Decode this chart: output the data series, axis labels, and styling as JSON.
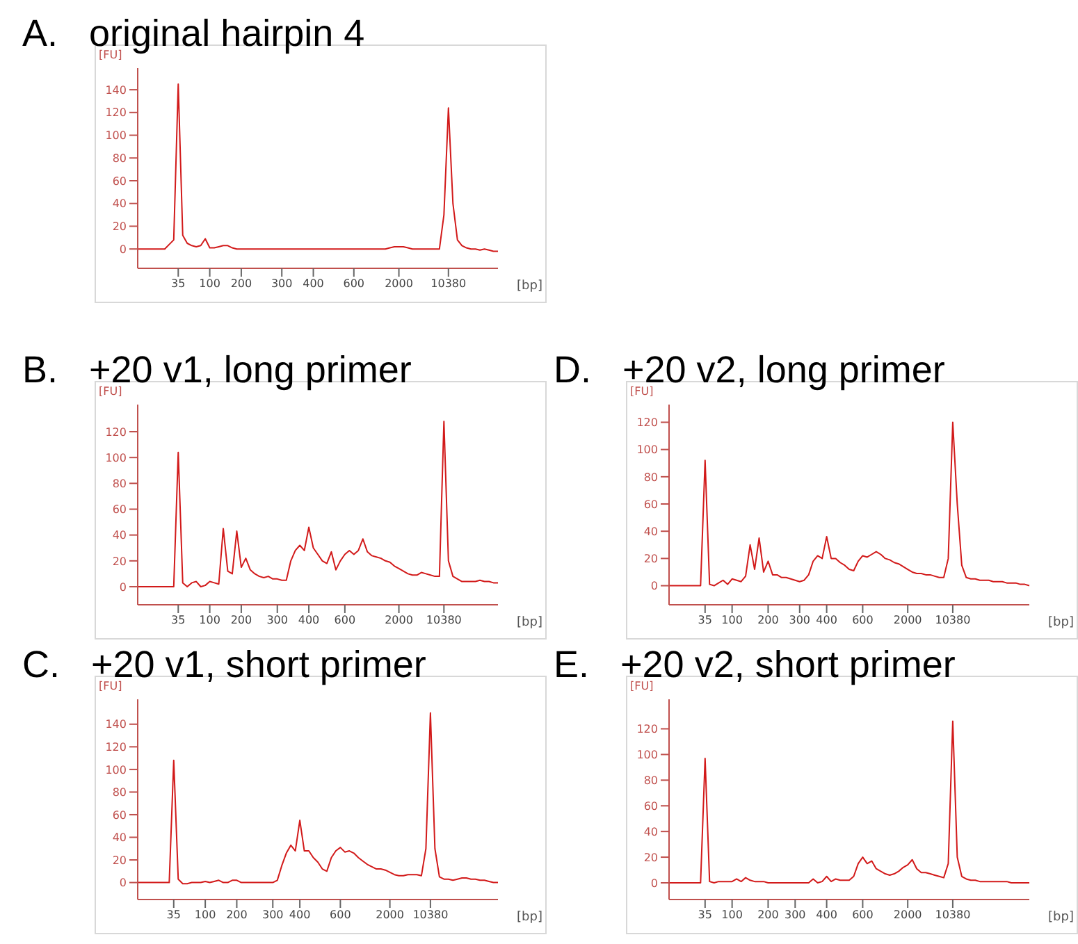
{
  "chart_data": [
    {
      "type": "line",
      "title": "A.   original hairpin 4",
      "ylabel": "[FU]",
      "xlabel": "[bp]",
      "categories": [
        null,
        null,
        null,
        null,
        null,
        null,
        null,
        null,
        null,
        "35",
        null,
        null,
        null,
        null,
        null,
        null,
        "100",
        null,
        null,
        null,
        null,
        null,
        null,
        "200",
        null,
        null,
        null,
        null,
        null,
        null,
        null,
        null,
        "300",
        null,
        null,
        null,
        null,
        null,
        null,
        "400",
        null,
        null,
        null,
        null,
        null,
        null,
        null,
        null,
        "600",
        null,
        null,
        null,
        null,
        null,
        null,
        null,
        null,
        null,
        "2000",
        null,
        null,
        null,
        null,
        null,
        null,
        null,
        null,
        null,
        null,
        "10380",
        null,
        null,
        null,
        null,
        null,
        null,
        null,
        null,
        null,
        null,
        null
      ],
      "series": [
        {
          "color": "#d21a1a",
          "values": [
            0,
            0,
            0,
            0,
            0,
            0,
            0,
            4,
            8,
            145,
            12,
            5,
            3,
            2,
            3,
            9,
            1,
            1,
            2,
            3,
            3,
            1,
            0,
            0,
            0,
            0,
            0,
            0,
            0,
            0,
            0,
            0,
            0,
            0,
            0,
            0,
            0,
            0,
            0,
            0,
            0,
            0,
            0,
            0,
            0,
            0,
            0,
            0,
            0,
            0,
            0,
            0,
            0,
            0,
            0,
            0,
            1,
            2,
            2,
            2,
            1,
            0,
            0,
            0,
            0,
            0,
            0,
            0,
            30,
            124,
            40,
            8,
            3,
            1,
            0,
            0,
            -1,
            0,
            -1,
            -2,
            -2
          ]
        }
      ],
      "ylim": [
        -17,
        159
      ],
      "yticks": [
        0,
        20,
        40,
        60,
        80,
        100,
        120,
        140
      ]
    },
    {
      "type": "line",
      "title": "B.   +20 v1, long primer",
      "ylabel": "[FU]",
      "xlabel": "[bp]",
      "categories": [
        null,
        null,
        null,
        null,
        null,
        null,
        null,
        null,
        null,
        "35",
        null,
        null,
        null,
        null,
        null,
        null,
        "100",
        null,
        null,
        null,
        null,
        null,
        null,
        "200",
        null,
        null,
        null,
        null,
        null,
        null,
        null,
        "300",
        null,
        null,
        null,
        null,
        null,
        null,
        "400",
        null,
        null,
        null,
        null,
        null,
        null,
        null,
        "600",
        null,
        null,
        null,
        null,
        null,
        null,
        null,
        null,
        null,
        null,
        null,
        "2000",
        null,
        null,
        null,
        null,
        null,
        null,
        null,
        null,
        null,
        "10380",
        null,
        null,
        null,
        null,
        null,
        null,
        null,
        null,
        null,
        null,
        null,
        null
      ],
      "series": [
        {
          "color": "#d21a1a",
          "values": [
            0,
            0,
            0,
            0,
            0,
            0,
            0,
            0,
            0,
            104,
            3,
            0,
            3,
            4,
            0,
            1,
            4,
            3,
            2,
            45,
            12,
            10,
            43,
            15,
            22,
            13,
            10,
            8,
            7,
            8,
            6,
            6,
            5,
            5,
            20,
            28,
            32,
            28,
            46,
            30,
            25,
            20,
            18,
            27,
            13,
            20,
            25,
            28,
            25,
            28,
            37,
            27,
            24,
            23,
            22,
            20,
            19,
            16,
            14,
            12,
            10,
            9,
            9,
            11,
            10,
            9,
            8,
            8,
            128,
            20,
            8,
            6,
            4,
            4,
            4,
            4,
            5,
            4,
            4,
            3,
            3
          ]
        }
      ],
      "ylim": [
        -14,
        141
      ],
      "yticks": [
        0,
        20,
        40,
        60,
        80,
        100,
        120
      ]
    },
    {
      "type": "line",
      "title": "C.   +20 v1, short primer",
      "ylabel": "[FU]",
      "xlabel": "[bp]",
      "categories": [
        null,
        null,
        null,
        null,
        null,
        null,
        null,
        null,
        "35",
        null,
        null,
        null,
        null,
        null,
        null,
        "100",
        null,
        null,
        null,
        null,
        null,
        null,
        "200",
        null,
        null,
        null,
        null,
        null,
        null,
        null,
        "300",
        null,
        null,
        null,
        null,
        null,
        "400",
        null,
        null,
        null,
        null,
        null,
        null,
        null,
        null,
        "600",
        null,
        null,
        null,
        null,
        null,
        null,
        null,
        null,
        null,
        null,
        "2000",
        null,
        null,
        null,
        null,
        null,
        null,
        null,
        null,
        "10380",
        null,
        null,
        null,
        null,
        null,
        null,
        null,
        null,
        null,
        null,
        null,
        null,
        null,
        null,
        null
      ],
      "series": [
        {
          "color": "#d21a1a",
          "values": [
            0,
            0,
            0,
            0,
            0,
            0,
            0,
            0,
            108,
            3,
            -1,
            -1,
            0,
            0,
            0,
            1,
            0,
            1,
            2,
            0,
            0,
            2,
            2,
            0,
            0,
            0,
            0,
            0,
            0,
            0,
            0,
            2,
            15,
            26,
            33,
            28,
            55,
            28,
            28,
            22,
            18,
            12,
            10,
            22,
            28,
            31,
            27,
            28,
            26,
            22,
            19,
            16,
            14,
            12,
            12,
            11,
            9,
            7,
            6,
            6,
            7,
            7,
            7,
            6,
            30,
            150,
            30,
            5,
            3,
            3,
            2,
            3,
            4,
            4,
            3,
            3,
            2,
            2,
            1,
            0,
            0
          ]
        }
      ],
      "ylim": [
        -15,
        162
      ],
      "yticks": [
        0,
        20,
        40,
        60,
        80,
        100,
        120,
        140
      ]
    },
    {
      "type": "line",
      "title": "D.   +20 v2, long primer",
      "ylabel": "[FU]",
      "xlabel": "[bp]",
      "categories": [
        null,
        null,
        null,
        null,
        null,
        null,
        null,
        null,
        "35",
        null,
        null,
        null,
        null,
        null,
        "100",
        null,
        null,
        null,
        null,
        null,
        null,
        null,
        "200",
        null,
        null,
        null,
        null,
        null,
        null,
        "300",
        null,
        null,
        null,
        null,
        null,
        "400",
        null,
        null,
        null,
        null,
        null,
        null,
        null,
        "600",
        null,
        null,
        null,
        null,
        null,
        null,
        null,
        null,
        null,
        "2000",
        null,
        null,
        null,
        null,
        null,
        null,
        null,
        null,
        null,
        "10380",
        null,
        null,
        null,
        null,
        null,
        null,
        null,
        null,
        null,
        null,
        null,
        null,
        null,
        null,
        null,
        null,
        null
      ],
      "series": [
        {
          "color": "#d21a1a",
          "values": [
            0,
            0,
            0,
            0,
            0,
            0,
            0,
            0,
            92,
            1,
            0,
            2,
            4,
            1,
            5,
            4,
            3,
            7,
            30,
            12,
            35,
            10,
            18,
            8,
            8,
            6,
            6,
            5,
            4,
            3,
            4,
            8,
            18,
            22,
            20,
            36,
            20,
            20,
            17,
            15,
            12,
            11,
            18,
            22,
            21,
            23,
            25,
            23,
            20,
            19,
            17,
            16,
            14,
            12,
            10,
            9,
            9,
            8,
            8,
            7,
            6,
            6,
            20,
            120,
            60,
            15,
            6,
            5,
            5,
            4,
            4,
            4,
            3,
            3,
            3,
            2,
            2,
            2,
            1,
            1,
            0
          ]
        }
      ],
      "ylim": [
        -14,
        133
      ],
      "yticks": [
        0,
        20,
        40,
        60,
        80,
        100,
        120
      ]
    },
    {
      "type": "line",
      "title": "E.   +20 v2, short primer",
      "ylabel": "[FU]",
      "xlabel": "[bp]",
      "categories": [
        null,
        null,
        null,
        null,
        null,
        null,
        null,
        null,
        "35",
        null,
        null,
        null,
        null,
        null,
        "100",
        null,
        null,
        null,
        null,
        null,
        null,
        null,
        "200",
        null,
        null,
        null,
        null,
        null,
        "300",
        null,
        null,
        null,
        null,
        null,
        null,
        "400",
        null,
        null,
        null,
        null,
        null,
        null,
        null,
        "600",
        null,
        null,
        null,
        null,
        null,
        null,
        null,
        null,
        null,
        "2000",
        null,
        null,
        null,
        null,
        null,
        null,
        null,
        null,
        null,
        "10380",
        null,
        null,
        null,
        null,
        null,
        null,
        null,
        null,
        null,
        null,
        null,
        null,
        null,
        null,
        null,
        null,
        null
      ],
      "series": [
        {
          "color": "#d21a1a",
          "values": [
            0,
            0,
            0,
            0,
            0,
            0,
            0,
            0,
            97,
            1,
            0,
            1,
            1,
            1,
            1,
            3,
            1,
            4,
            2,
            1,
            1,
            1,
            0,
            0,
            0,
            0,
            0,
            0,
            0,
            0,
            0,
            0,
            3,
            0,
            1,
            5,
            1,
            3,
            2,
            2,
            2,
            5,
            15,
            20,
            15,
            17,
            11,
            9,
            7,
            6,
            7,
            9,
            12,
            14,
            18,
            11,
            8,
            8,
            7,
            6,
            5,
            4,
            15,
            126,
            20,
            5,
            3,
            2,
            2,
            1,
            1,
            1,
            1,
            1,
            1,
            1,
            0,
            0,
            0,
            0,
            0
          ]
        }
      ],
      "ylim": [
        -13,
        143
      ],
      "yticks": [
        0,
        20,
        40,
        60,
        80,
        100,
        120
      ]
    }
  ]
}
